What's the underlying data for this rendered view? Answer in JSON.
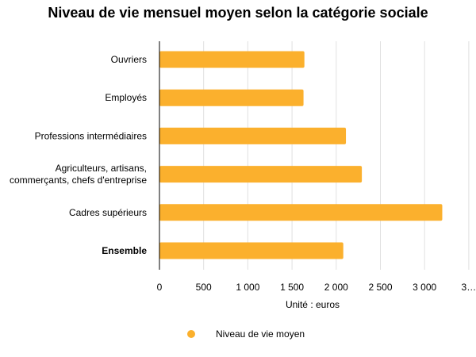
{
  "chart_data": {
    "type": "bar",
    "orientation": "horizontal",
    "title": "Niveau de vie mensuel moyen selon la catégorie sociale",
    "categories": [
      "Ouvriers",
      "Employés",
      "Professions intermédiaires",
      "Agriculteurs, artisans,\ncommerçants, chefs d'entreprise",
      "Cadres supérieurs",
      "Ensemble"
    ],
    "bold_categories": [
      "Ensemble"
    ],
    "series": [
      {
        "name": "Niveau de vie moyen",
        "values": [
          1640,
          1630,
          2110,
          2290,
          3200,
          2080
        ]
      }
    ],
    "x_ticks": [
      "0",
      "500",
      "1 000",
      "1 500",
      "2 000",
      "2 500",
      "3 000",
      "3…"
    ],
    "xlim": [
      0,
      3500
    ],
    "xlabel": "Unité : euros",
    "grid": true,
    "legend_position": "bottom",
    "colors": {
      "bar": "#FBB02D",
      "grid": "#e0e0e0",
      "axis": "#000000"
    }
  }
}
